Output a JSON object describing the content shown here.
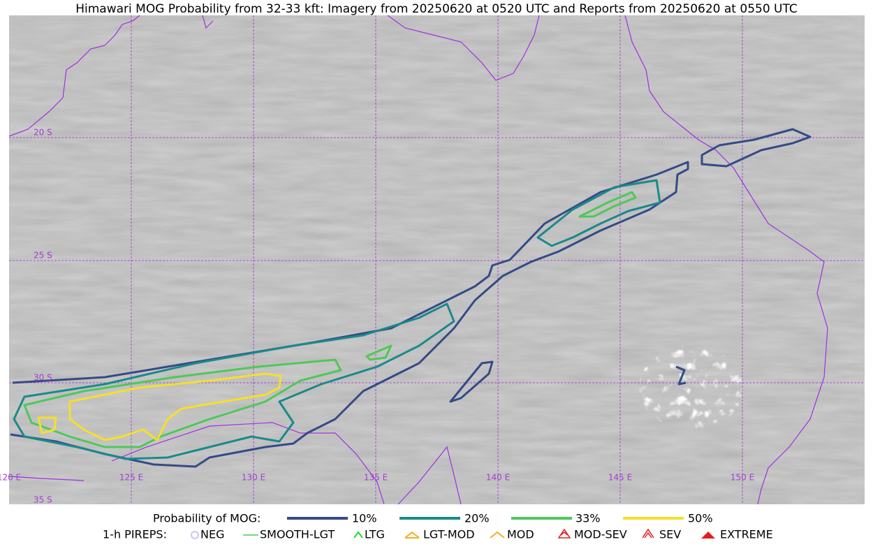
{
  "title": "Himawari MOG Probability from 32-33 kft: Imagery from 20250620 at 0520 UTC and Reports from 20250620 at 0550 UTC",
  "map": {
    "lat_labels": [
      "20 S",
      "25 S",
      "30 S",
      "35 S"
    ],
    "lon_labels": [
      "120 E",
      "125 E",
      "130 E",
      "135 E",
      "140 E",
      "145 E",
      "150 E"
    ]
  },
  "legend": {
    "mog_title": "Probability of MOG:",
    "mog_items": [
      "10%",
      "20%",
      "33%",
      "50%"
    ],
    "pirep_title": "1-h PIREPS:",
    "pirep_items": [
      "NEG",
      "SMOOTH-LGT",
      "LTG",
      "LGT-MOD",
      "MOD",
      "MOD-SEV",
      "SEV",
      "EXTREME"
    ]
  }
}
